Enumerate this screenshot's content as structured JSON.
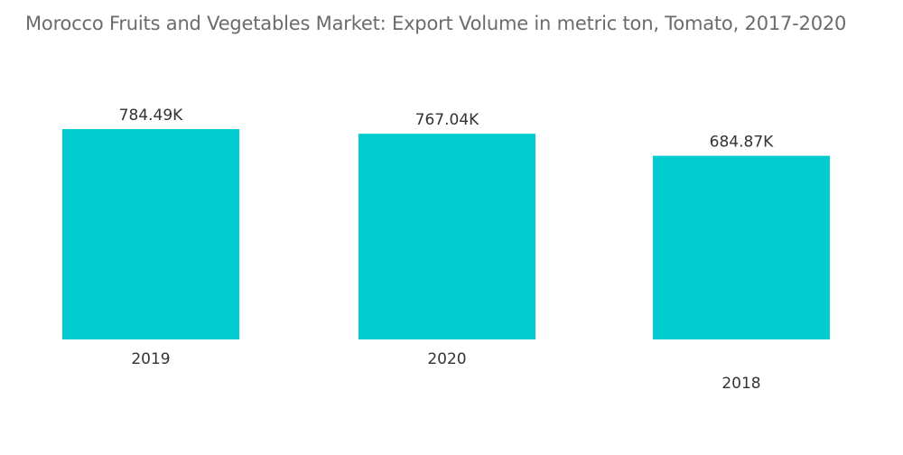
{
  "chart_data": {
    "type": "bar",
    "title": "Morocco Fruits and Vegetables Market: Export Volume in metric ton, Tomato, 2017-2020",
    "categories": [
      "2019",
      "2020",
      "2018"
    ],
    "values": [
      784.49,
      767.04,
      684.87
    ],
    "value_labels": [
      "784.49K",
      "767.04K",
      "684.87K"
    ],
    "units": "thousand metric tons",
    "xlabel": "",
    "ylabel": "",
    "ylim": [
      0,
      784.49
    ],
    "grid": false,
    "legend": "none",
    "bar_color": "#00ccd0"
  }
}
